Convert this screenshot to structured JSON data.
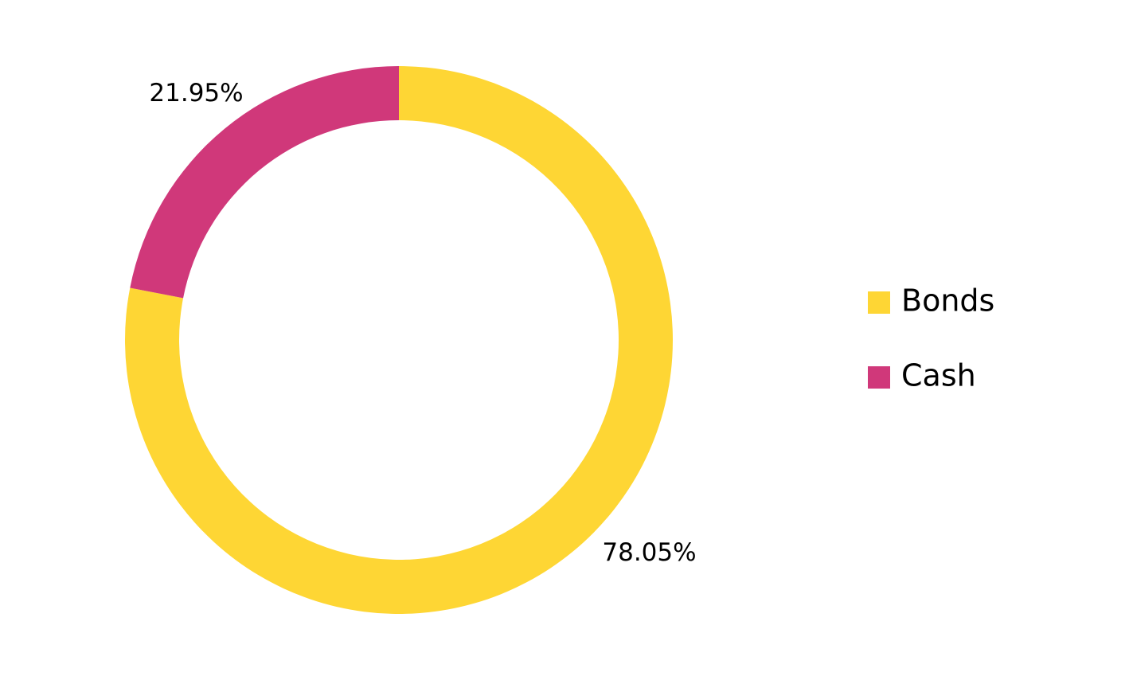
{
  "chart_data": {
    "type": "donut",
    "categories": [
      "Bonds",
      "Cash"
    ],
    "values": [
      78.05,
      21.95
    ],
    "value_labels": [
      "78.05%",
      "21.95%"
    ],
    "colors": [
      "#fed634",
      "#d0387a"
    ],
    "legend": "right"
  }
}
